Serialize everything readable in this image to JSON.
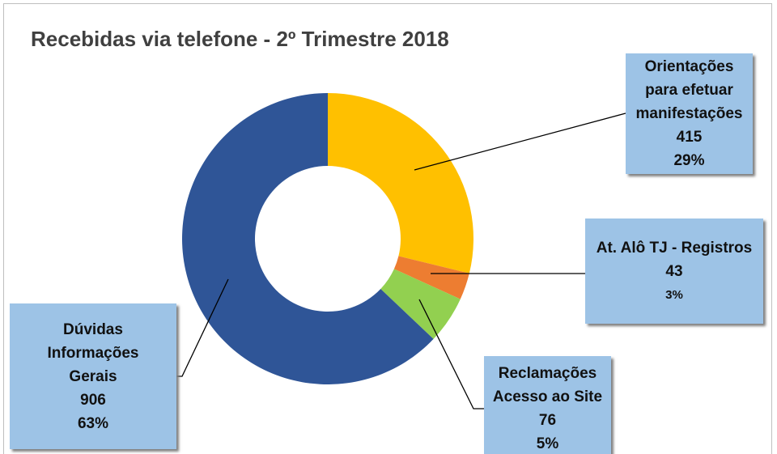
{
  "chart_data": {
    "type": "donut",
    "title": "Recebidas via telefone - 2º Trimestre 2018",
    "categories": [
      "Orientações para efetuar manifestações",
      "At. Alô TJ - Registros",
      "Reclamações Acesso ao Site",
      "Dúvidas Informações Gerais"
    ],
    "values": [
      415,
      43,
      76,
      906
    ],
    "percent_labels": [
      "29%",
      "3%",
      "5%",
      "63%"
    ],
    "colors": [
      "#ffc000",
      "#ed7d31",
      "#92d050",
      "#2f5597"
    ]
  }
}
